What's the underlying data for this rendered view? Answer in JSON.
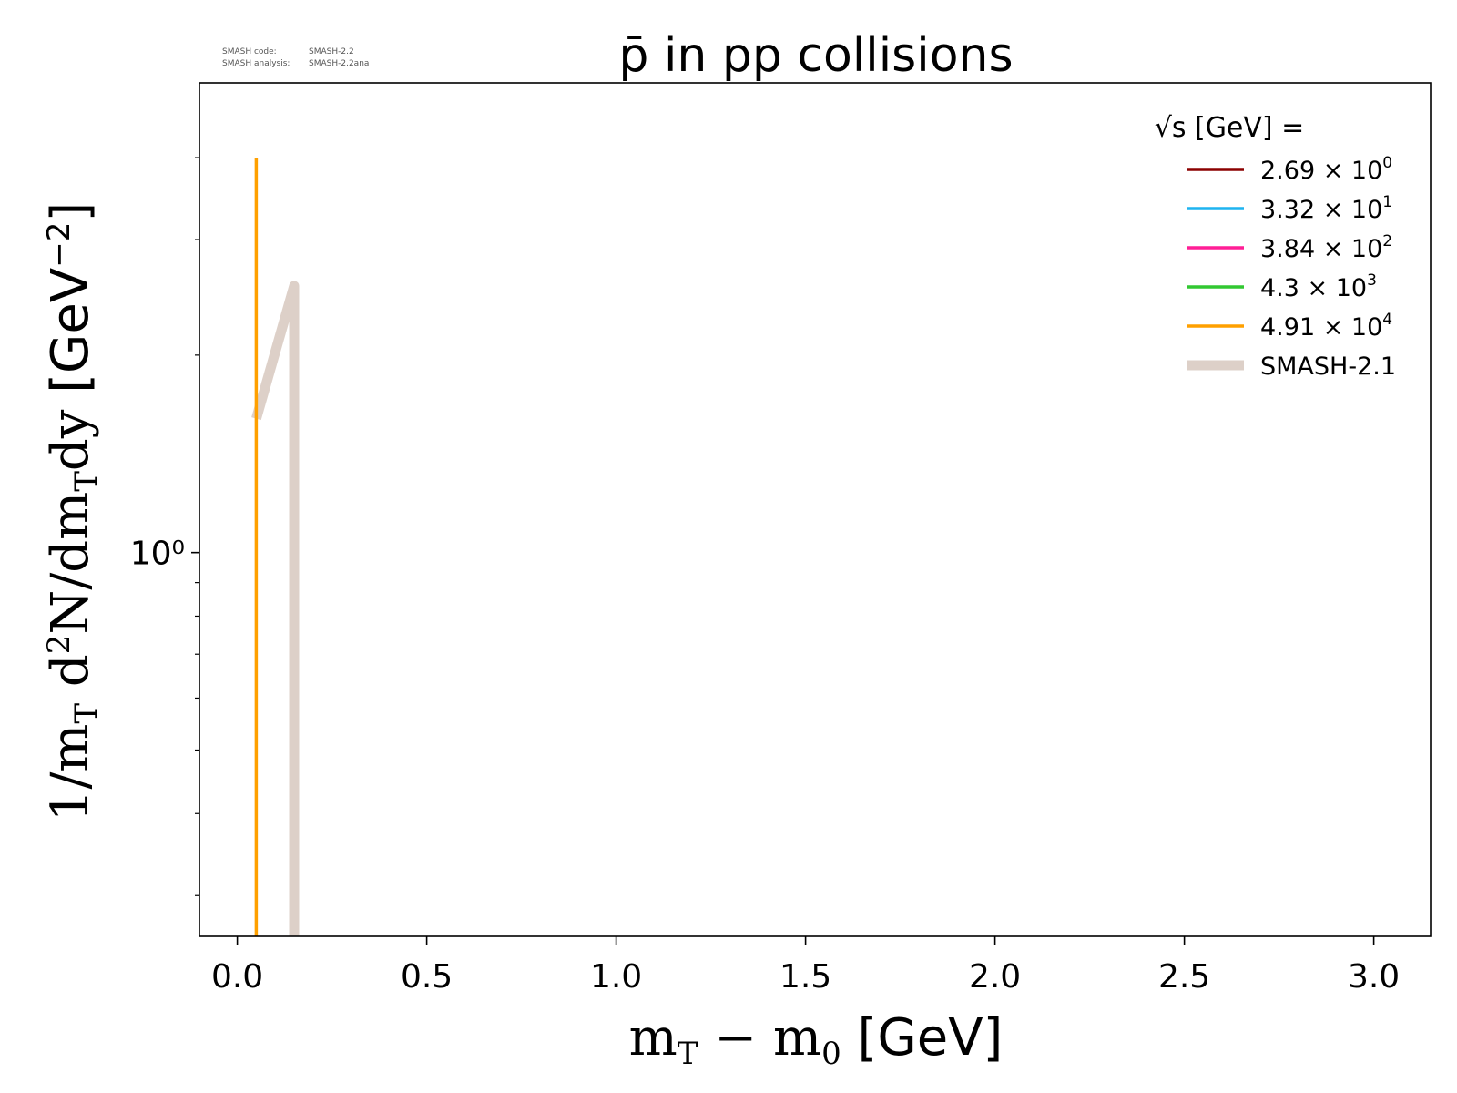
{
  "meta_text": {
    "code_label": "SMASH code:",
    "code_value": "SMASH-2.2",
    "analysis_label": "SMASH analysis:",
    "analysis_value": "SMASH-2.2ana"
  },
  "chart_data": {
    "type": "line",
    "title": "p̄ in pp collisions",
    "xlabel": "m_T − m_0 [GeV]",
    "ylabel": "1/m_T d²N/dm_Tdy [GeV⁻²]",
    "xscale": "linear",
    "yscale": "log",
    "xlim": [
      -0.1,
      3.15
    ],
    "ylim": [
      0.26,
      5.2
    ],
    "x_ticks": [
      0.0,
      0.5,
      1.0,
      1.5,
      2.0,
      2.5,
      3.0
    ],
    "x_tick_labels": [
      "0.0",
      "0.5",
      "1.0",
      "1.5",
      "2.0",
      "2.5",
      "3.0"
    ],
    "y_major_ticks": [
      1
    ],
    "y_major_tick_labels": [
      "10⁰"
    ],
    "y_minor_ticks": [
      0.3,
      0.4,
      0.5,
      0.6,
      0.7,
      0.8,
      0.9,
      2,
      3,
      4
    ],
    "grid": false,
    "legend": {
      "position": "top-right",
      "title": "√s [GeV] =",
      "entries": [
        {
          "mantissa": "2.69",
          "exponent": "0",
          "color": "#8b0000"
        },
        {
          "mantissa": "3.32",
          "exponent": "1",
          "color": "#1eb4f0"
        },
        {
          "mantissa": "3.84",
          "exponent": "2",
          "color": "#ff1e96"
        },
        {
          "mantissa": "4.3",
          "exponent": "3",
          "color": "#32c832"
        },
        {
          "mantissa": "4.91",
          "exponent": "4",
          "color": "#ffa000"
        },
        {
          "label": "SMASH-2.1",
          "color": "#ddd0c8",
          "thick": true
        }
      ]
    },
    "series": [
      {
        "color": "#ddd0c8",
        "width": 11,
        "points": [
          [
            0.05,
            1.6
          ],
          [
            0.15,
            2.55
          ],
          [
            0.15,
            0.26
          ]
        ]
      },
      {
        "color": "#ffa000",
        "width": 3.5,
        "points": [
          [
            0.05,
            0.26
          ],
          [
            0.05,
            4.0
          ]
        ]
      }
    ]
  }
}
